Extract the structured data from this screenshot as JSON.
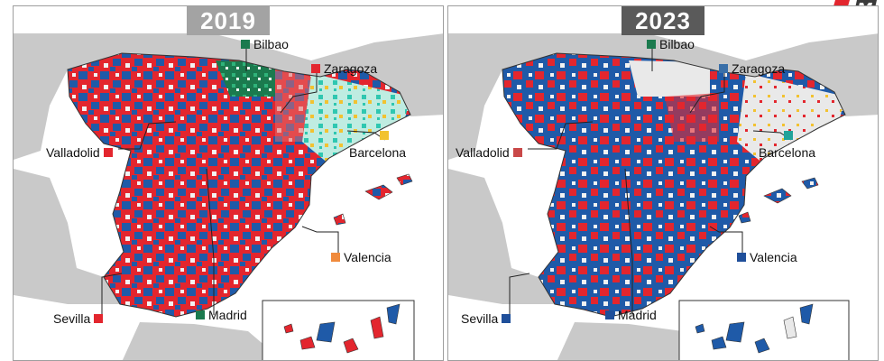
{
  "panels": [
    {
      "year": "2019",
      "cities": [
        {
          "name": "Bilbao",
          "color": "#1b7a4e"
        },
        {
          "name": "Zaragoza",
          "color": "#e3262e"
        },
        {
          "name": "Valladolid",
          "color": "#e3262e"
        },
        {
          "name": "Barcelona",
          "color": "#f2c230"
        },
        {
          "name": "Valencia",
          "color": "#f08a3c"
        },
        {
          "name": "Sevilla",
          "color": "#e3262e"
        },
        {
          "name": "Madrid",
          "color": "#1b7a4e"
        }
      ]
    },
    {
      "year": "2023",
      "cities": [
        {
          "name": "Bilbao",
          "color": "#1b7a4e"
        },
        {
          "name": "Zaragoza",
          "color": "#3a6fa8"
        },
        {
          "name": "Valladolid",
          "color": "#c94848"
        },
        {
          "name": "Barcelona",
          "color": "#21a39a"
        },
        {
          "name": "Valencia",
          "color": "#1f4f9a"
        },
        {
          "name": "Sevilla",
          "color": "#1f4f9a"
        },
        {
          "name": "Madrid",
          "color": "#1f4f9a"
        }
      ]
    }
  ],
  "colors": {
    "red": "#e3262e",
    "blue": "#1f5aa8",
    "green": "#1b7a4e",
    "teal": "#2fc7b1",
    "yellow": "#f2c230",
    "white": "#f2f2f2",
    "land": "#c9c9c9",
    "sea": "#ffffff"
  }
}
